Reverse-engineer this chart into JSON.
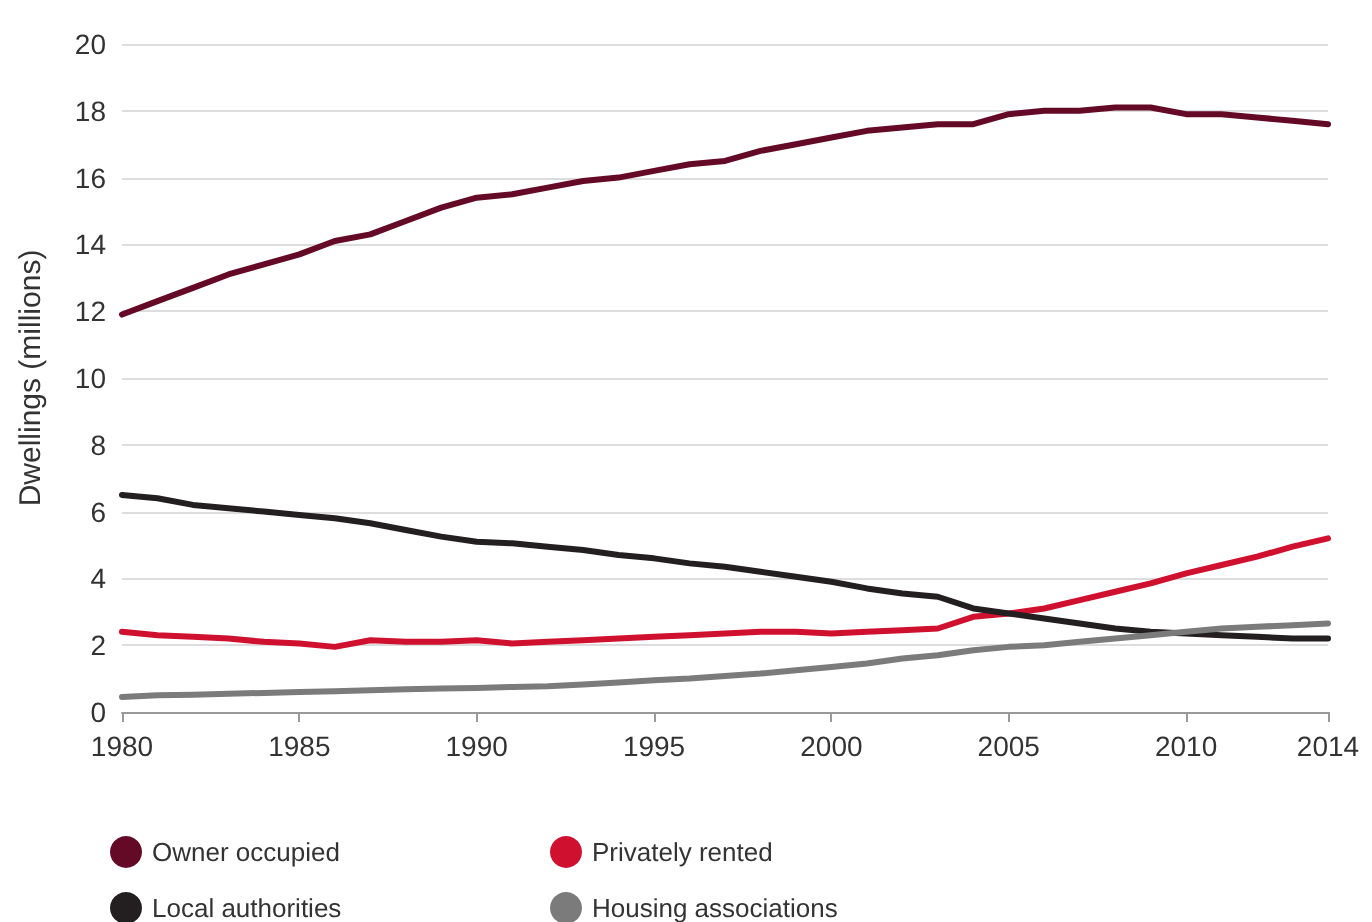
{
  "chart_data": {
    "type": "line",
    "ylabel": "Dwellings (millions)",
    "x": [
      1980,
      1981,
      1982,
      1983,
      1984,
      1985,
      1986,
      1987,
      1988,
      1989,
      1990,
      1991,
      1992,
      1993,
      1994,
      1995,
      1996,
      1997,
      1998,
      1999,
      2000,
      2001,
      2002,
      2003,
      2004,
      2005,
      2006,
      2007,
      2008,
      2009,
      2010,
      2011,
      2012,
      2013,
      2014
    ],
    "series": [
      {
        "name": "Owner occupied",
        "color": "#640a27",
        "values": [
          11.9,
          12.3,
          12.7,
          13.1,
          13.4,
          13.7,
          14.1,
          14.3,
          14.7,
          15.1,
          15.4,
          15.5,
          15.7,
          15.9,
          16.0,
          16.2,
          16.4,
          16.5,
          16.8,
          17.0,
          17.2,
          17.4,
          17.5,
          17.6,
          17.6,
          17.9,
          18.0,
          18.0,
          18.1,
          18.1,
          17.9,
          17.9,
          17.8,
          17.7,
          17.6
        ]
      },
      {
        "name": "Privately rented",
        "color": "#d0102f",
        "values": [
          2.4,
          2.3,
          2.25,
          2.2,
          2.1,
          2.05,
          1.95,
          2.15,
          2.1,
          2.1,
          2.15,
          2.05,
          2.1,
          2.15,
          2.2,
          2.25,
          2.3,
          2.35,
          2.4,
          2.4,
          2.35,
          2.4,
          2.45,
          2.5,
          2.85,
          2.95,
          3.1,
          3.35,
          3.6,
          3.85,
          4.15,
          4.4,
          4.65,
          4.95,
          5.2
        ]
      },
      {
        "name": "Local authorities",
        "color": "#231f20",
        "values": [
          6.5,
          6.4,
          6.2,
          6.1,
          6.0,
          5.9,
          5.8,
          5.65,
          5.45,
          5.25,
          5.1,
          5.05,
          4.95,
          4.85,
          4.7,
          4.6,
          4.45,
          4.35,
          4.2,
          4.05,
          3.9,
          3.7,
          3.55,
          3.45,
          3.1,
          2.95,
          2.8,
          2.65,
          2.5,
          2.4,
          2.35,
          2.3,
          2.25,
          2.2,
          2.2
        ]
      },
      {
        "name": "Housing associations",
        "color": "#7b7b7b",
        "values": [
          0.45,
          0.5,
          0.52,
          0.55,
          0.57,
          0.6,
          0.62,
          0.65,
          0.68,
          0.7,
          0.72,
          0.75,
          0.77,
          0.82,
          0.88,
          0.95,
          1.0,
          1.08,
          1.15,
          1.25,
          1.35,
          1.45,
          1.6,
          1.7,
          1.85,
          1.95,
          2.0,
          2.1,
          2.2,
          2.3,
          2.4,
          2.5,
          2.55,
          2.6,
          2.65
        ]
      }
    ],
    "xlim": [
      1980,
      2014
    ],
    "xticks": [
      1980,
      1985,
      1990,
      1995,
      2000,
      2005,
      2010,
      2014
    ],
    "ylim": [
      0,
      20
    ],
    "yticks": [
      0,
      2,
      4,
      6,
      8,
      10,
      12,
      14,
      16,
      18,
      20
    ],
    "grid": "y",
    "legend": "bottom",
    "marker": "none",
    "line_style": "solid"
  }
}
